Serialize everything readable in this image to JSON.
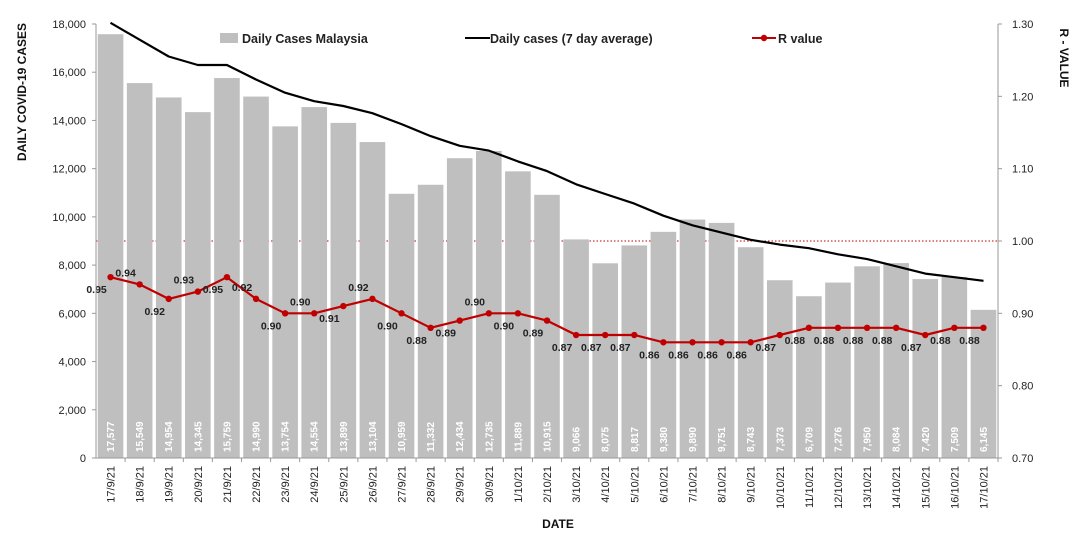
{
  "chart_data": {
    "type": "bar+line",
    "categories": [
      "17/9/21",
      "18/9/21",
      "19/9/21",
      "20/9/21",
      "21/9/21",
      "22/9/21",
      "23/9/21",
      "24/9/21",
      "25/9/21",
      "26/9/21",
      "27/9/21",
      "28/9/21",
      "29/9/21",
      "30/9/21",
      "1/10/21",
      "2/10/21",
      "3/10/21",
      "4/10/21",
      "5/10/21",
      "6/10/21",
      "7/10/21",
      "8/10/21",
      "9/10/21",
      "10/10/21",
      "11/10/21",
      "12/10/21",
      "13/10/21",
      "14/10/21",
      "15/10/21",
      "16/10/21",
      "17/10/21"
    ],
    "xlabel": "DATE",
    "ylabel": "DAILY COVID-19 CASES",
    "y2label": "R - VALUE",
    "ylim": [
      0,
      18000
    ],
    "y2lim": [
      0.7,
      1.3
    ],
    "yticks": [
      "0",
      "2,000",
      "4,000",
      "6,000",
      "8,000",
      "10,000",
      "12,000",
      "14,000",
      "16,000",
      "18,000"
    ],
    "y2ticks": [
      "0.70",
      "0.80",
      "0.90",
      "1.00",
      "1.10",
      "1.20",
      "1.30"
    ],
    "reference_line": 1.0,
    "legend_placement": "top",
    "series": [
      {
        "name": "Daily Cases Malaysia",
        "kind": "bar",
        "axis": "left",
        "color": "#bfbfbf",
        "values": [
          17577,
          15549,
          14954,
          14345,
          15759,
          14990,
          13754,
          14554,
          13899,
          13104,
          10959,
          11332,
          12434,
          12735,
          11889,
          10915,
          9066,
          8075,
          8817,
          9380,
          9890,
          9751,
          8743,
          7373,
          6709,
          7276,
          7950,
          8084,
          7420,
          7509,
          6145
        ],
        "labels": [
          "17,577",
          "15,549",
          "14,954",
          "14,345",
          "15,759",
          "14,990",
          "13,754",
          "14,554",
          "13,899",
          "13,104",
          "10,959",
          "11,332",
          "12,434",
          "12,735",
          "11,889",
          "10,915",
          "9,066",
          "8,075",
          "8,817",
          "9,380",
          "9,890",
          "9,751",
          "8,743",
          "7,373",
          "6,709",
          "7,276",
          "7,950",
          "8,084",
          "7,420",
          "7,509",
          "6,145"
        ]
      },
      {
        "name": "Daily cases (7 day average)",
        "kind": "line",
        "axis": "left",
        "color": "#000000",
        "values": [
          18050,
          17350,
          16650,
          16300,
          16300,
          15700,
          15150,
          14800,
          14600,
          14300,
          13850,
          13350,
          12950,
          12750,
          12300,
          11900,
          11350,
          10950,
          10550,
          10050,
          9650,
          9350,
          9050,
          8850,
          8700,
          8450,
          8250,
          7950,
          7650,
          7500,
          7350
        ]
      },
      {
        "name": "R value",
        "kind": "line",
        "axis": "right",
        "color": "#c00000",
        "values": [
          0.95,
          0.94,
          0.92,
          0.93,
          0.95,
          0.92,
          0.9,
          0.9,
          0.91,
          0.92,
          0.9,
          0.88,
          0.89,
          0.9,
          0.9,
          0.89,
          0.87,
          0.87,
          0.87,
          0.86,
          0.86,
          0.86,
          0.86,
          0.87,
          0.88,
          0.88,
          0.88,
          0.88,
          0.87,
          0.88,
          0.88
        ],
        "labels": [
          "0.95",
          "0.94",
          "0.92",
          "0.93",
          "0.95",
          "0.92",
          "0.90",
          "0.90",
          "0.91",
          "0.92",
          "0.90",
          "0.88",
          "0.89",
          "0.90",
          "0.90",
          "0.89",
          "0.87",
          "0.87",
          "0.87",
          "0.86",
          "0.86",
          "0.86",
          "0.86",
          "0.87",
          "0.88",
          "0.88",
          "0.88",
          "0.88",
          "0.87",
          "0.88",
          "0.88"
        ]
      }
    ]
  }
}
